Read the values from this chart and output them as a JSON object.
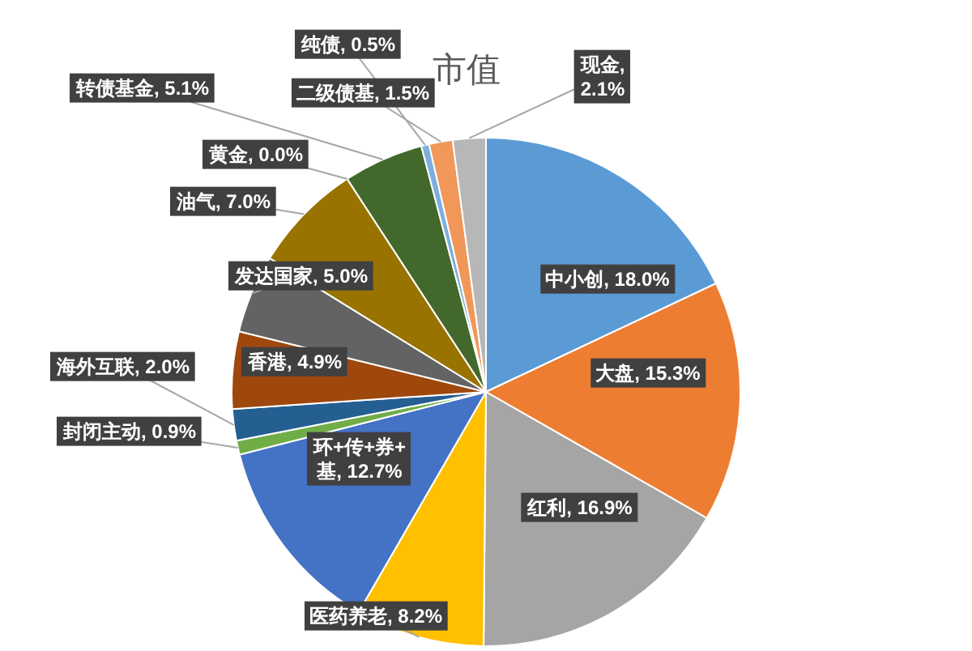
{
  "chart_data": {
    "type": "pie",
    "title": "市值",
    "categories": [
      "中小创",
      "大盘",
      "红利",
      "医药养老",
      "环+传+券+基",
      "封闭主动",
      "海外互联",
      "香港",
      "发达国家",
      "油气",
      "黄金",
      "转债基金",
      "纯债",
      "二级债基",
      "现金"
    ],
    "values": [
      18.0,
      15.3,
      16.9,
      8.2,
      12.7,
      0.9,
      2.0,
      4.9,
      5.0,
      7.0,
      0.0,
      5.1,
      0.5,
      1.5,
      2.1
    ],
    "colors": [
      "#5b9bd5",
      "#ed7d31",
      "#a5a5a5",
      "#ffc000",
      "#4472c4",
      "#70ad47",
      "#255e91",
      "#9e480e",
      "#636363",
      "#997300",
      "#264478",
      "#43682b",
      "#7cafdd",
      "#f1975a",
      "#b7b7b7"
    ],
    "value_labels": [
      ", 18.0%",
      ", 15.3%",
      ", 16.9%",
      ", 8.2%",
      ", 12.7%",
      ", 0.9%",
      ", 2.0%",
      ", 4.9%",
      ", 5.0%",
      ", 7.0%",
      ", 0.0%",
      ", 5.1%",
      ", 0.5%",
      ", 1.5%",
      ", 2.1%"
    ]
  }
}
